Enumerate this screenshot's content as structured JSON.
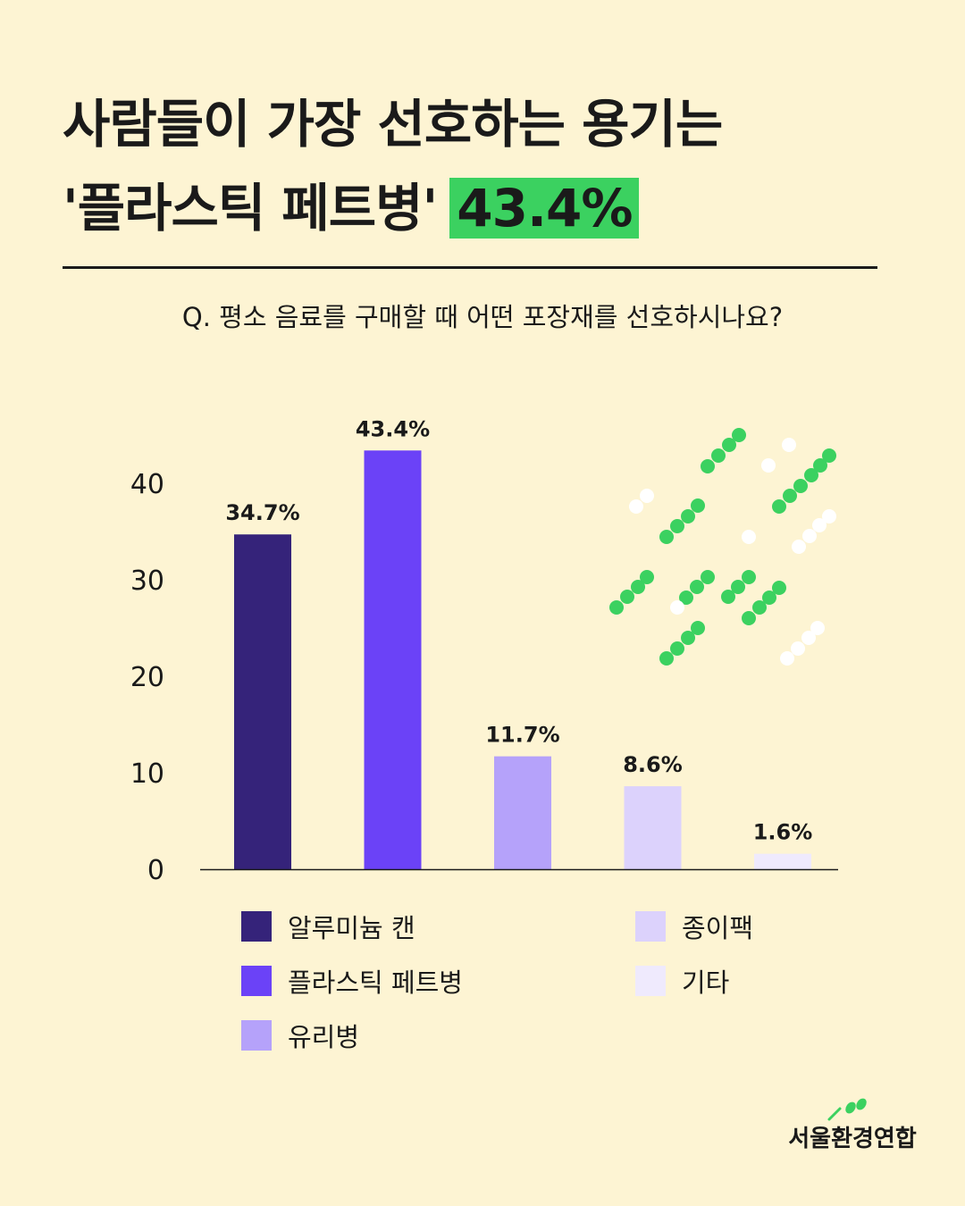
{
  "header": {
    "title_line1": "사람들이 가장 선호하는 용기는",
    "title_line2": "'플라스틱 페트병'",
    "title_highlight": "43.4%",
    "question": "Q. 평소 음료를 구매할 때 어떤 포장재를 선호하시나요?"
  },
  "colors": {
    "background": "#FDF4D3",
    "highlight": "#3BD160",
    "dots_green": "#3BD160",
    "dots_white": "#FFFFFF"
  },
  "chart_data": {
    "type": "bar",
    "categories": [
      "알루미늄 캔",
      "플라스틱 페트병",
      "유리병",
      "종이팩",
      "기타"
    ],
    "values": [
      34.7,
      43.4,
      11.7,
      8.6,
      1.6
    ],
    "data_labels": [
      "34.7%",
      "43.4%",
      "11.7%",
      "8.6%",
      "1.6%"
    ],
    "colors": [
      "#35237A",
      "#6B42F7",
      "#B5A2FA",
      "#DCD2FC",
      "#EFEAFD"
    ],
    "y_ticks": [
      0,
      10,
      20,
      30,
      40
    ],
    "ylim": [
      0,
      45
    ],
    "grid": false,
    "legend_position": "bottom",
    "title": "",
    "xlabel": "",
    "ylabel": ""
  },
  "legend": {
    "items": [
      "알루미늄 캔",
      "플라스틱 페트병",
      "유리병",
      "종이팩",
      "기타"
    ]
  },
  "logo": {
    "text": "서울환경연합",
    "icon": "leaf-sprout-icon"
  }
}
